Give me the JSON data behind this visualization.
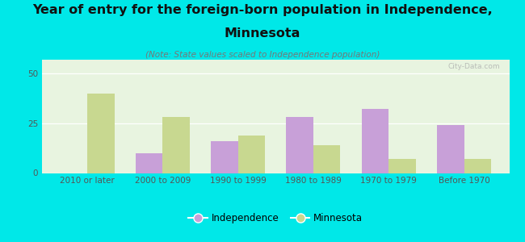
{
  "categories": [
    "2010 or later",
    "2000 to 2009",
    "1990 to 1999",
    "1980 to 1989",
    "1970 to 1979",
    "Before 1970"
  ],
  "independence_values": [
    0,
    10,
    16,
    28,
    32,
    24
  ],
  "minnesota_values": [
    40,
    28,
    19,
    14,
    7,
    7
  ],
  "independence_color": "#c8a0d8",
  "minnesota_color": "#c8d890",
  "title_line1": "Year of entry for the foreign-born population in Independence,",
  "title_line2": "Minnesota",
  "subtitle": "(Note: State values scaled to Independence population)",
  "ylim": [
    0,
    57
  ],
  "yticks": [
    0,
    25,
    50
  ],
  "background_color": "#00e8e8",
  "plot_bg_color": "#e8f4e0",
  "title_fontsize": 11.5,
  "subtitle_fontsize": 7.5,
  "tick_fontsize": 7.5,
  "watermark": "City-Data.com",
  "legend_independence": "Independence",
  "legend_minnesota": "Minnesota",
  "bar_width": 0.36
}
